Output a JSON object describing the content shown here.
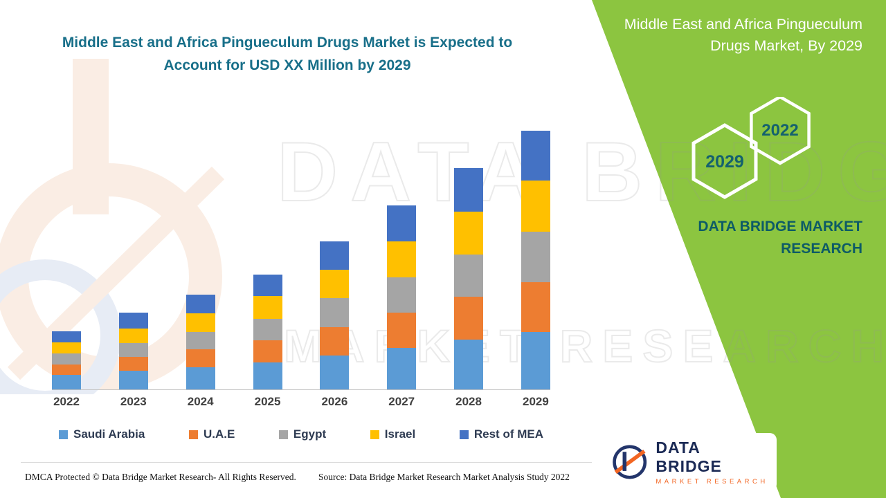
{
  "header": {
    "left_title": "Middle East and Africa Pingueculum Drugs Market is Expected to Account for USD XX Million by 2029",
    "right_title": "Middle East and Africa Pingueculum Drugs Market, By 2029"
  },
  "badges": {
    "front_year": "2022",
    "back_year": "2029"
  },
  "panel": {
    "brand_text": "DATA BRIDGE MARKET RESEARCH"
  },
  "watermark": {
    "line1": "DATA BRIDGE",
    "line2": "MARKET RESEARCH"
  },
  "logo": {
    "name": "DATA BRIDGE",
    "tagline": "MARKET RESEARCH"
  },
  "footer": {
    "dmca": "DMCA Protected © Data Bridge Market Research- All Rights Reserved.",
    "source": "Source: Data Bridge Market Research Market Analysis Study 2022"
  },
  "colors": {
    "accent_green": "#8CC540",
    "title_teal": "#186F89",
    "panel_text_teal": "#0D5B66",
    "hex_year_teal": "#14616E",
    "logo_navy": "#1B2A55",
    "logo_orange": "#F26522"
  },
  "chart_data": {
    "type": "bar",
    "stacked": true,
    "title": "",
    "xlabel": "",
    "ylabel": "",
    "grid": false,
    "legend_position": "bottom",
    "value_note": "No y-axis shown in source; values estimated in relative USD Million units",
    "ylim": [
      0,
      400
    ],
    "categories": [
      "2022",
      "2023",
      "2024",
      "2025",
      "2026",
      "2027",
      "2028",
      "2029"
    ],
    "series": [
      {
        "name": "Saudi Arabia",
        "color": "#5B9BD5",
        "values": [
          21,
          27,
          33,
          40,
          50,
          61,
          73,
          84
        ]
      },
      {
        "name": "U.A.E",
        "color": "#ED7D31",
        "values": [
          16,
          21,
          26,
          32,
          42,
          52,
          63,
          74
        ]
      },
      {
        "name": "Egypt",
        "color": "#A5A5A5",
        "values": [
          16,
          20,
          26,
          32,
          42,
          52,
          63,
          74
        ]
      },
      {
        "name": "Israel",
        "color": "#FFC000",
        "values": [
          16,
          22,
          27,
          33,
          42,
          53,
          63,
          75
        ]
      },
      {
        "name": "Rest of MEA",
        "color": "#4472C4",
        "values": [
          17,
          23,
          28,
          32,
          42,
          53,
          64,
          74
        ]
      }
    ]
  }
}
